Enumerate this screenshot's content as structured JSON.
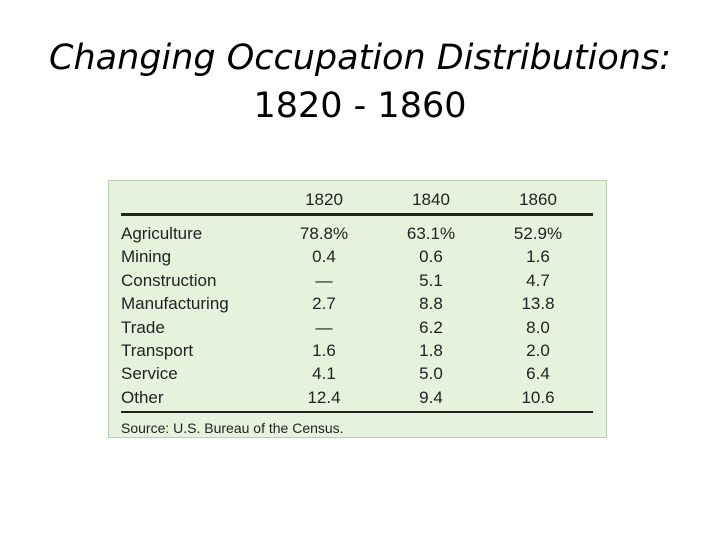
{
  "header": {
    "title_line1": "Changing Occupation Distributions:",
    "title_line2": "1820 - 1860"
  },
  "table": {
    "columns": [
      "1820",
      "1840",
      "1860"
    ],
    "rows": [
      [
        "Agriculture",
        "78.8%",
        "63.1%",
        "52.9%"
      ],
      [
        "Mining",
        "0.4",
        "0.6",
        "1.6"
      ],
      [
        "Construction",
        "—",
        "5.1",
        "4.7"
      ],
      [
        "Manufacturing",
        "2.7",
        "8.8",
        "13.8"
      ],
      [
        "Trade",
        "—",
        "6.2",
        "8.0"
      ],
      [
        "Transport",
        "1.6",
        "1.8",
        "2.0"
      ],
      [
        "Service",
        "4.1",
        "5.0",
        "6.4"
      ],
      [
        "Other",
        "12.4",
        "9.4",
        "10.6"
      ]
    ],
    "source": "Source: U.S. Bureau of the Census."
  }
}
